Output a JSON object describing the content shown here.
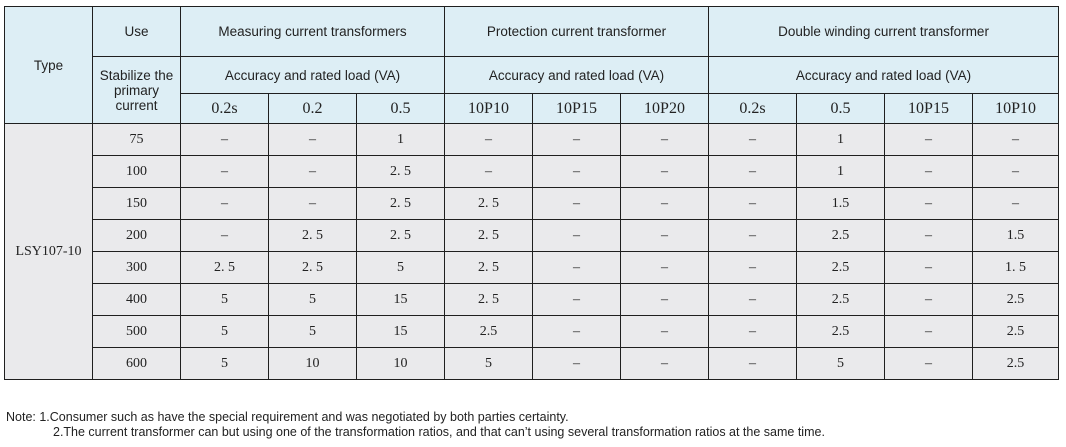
{
  "header": {
    "type": "Type",
    "use": "Use",
    "stabilize": "Stabilize the primary current",
    "groups": [
      "Measuring current transformers",
      "Protection current transformer",
      "Double winding current transformer"
    ],
    "accuracy": "Accuracy and rated load (VA)",
    "classes": [
      "0.2s",
      "0.2",
      "0.5",
      "10P10",
      "10P15",
      "10P20",
      "0.2s",
      "0.5",
      "10P15",
      "10P10"
    ]
  },
  "type_value": "LSY107-10",
  "rows": [
    {
      "current": "75",
      "values": [
        "–",
        "–",
        "1",
        "–",
        "–",
        "–",
        "–",
        "1",
        "–",
        "–"
      ]
    },
    {
      "current": "100",
      "values": [
        "–",
        "–",
        "2. 5",
        "–",
        "–",
        "–",
        "–",
        "1",
        "–",
        "–"
      ]
    },
    {
      "current": "150",
      "values": [
        "–",
        "–",
        "2. 5",
        "2. 5",
        "–",
        "–",
        "–",
        "1.5",
        "–",
        "–"
      ]
    },
    {
      "current": "200",
      "values": [
        "–",
        "2. 5",
        "2. 5",
        "2. 5",
        "–",
        "–",
        "–",
        "2.5",
        "–",
        "1.5"
      ]
    },
    {
      "current": "300",
      "values": [
        "2. 5",
        "2. 5",
        "5",
        "2. 5",
        "–",
        "–",
        "–",
        "2.5",
        "–",
        "1. 5"
      ]
    },
    {
      "current": "400",
      "values": [
        "5",
        "5",
        "15",
        "2. 5",
        "–",
        "–",
        "–",
        "2.5",
        "–",
        "2.5"
      ]
    },
    {
      "current": "500",
      "values": [
        "5",
        "5",
        "15",
        "2.5",
        "–",
        "–",
        "–",
        "2.5",
        "–",
        "2.5"
      ]
    },
    {
      "current": "600",
      "values": [
        "5",
        "10",
        "10",
        "5",
        "–",
        "–",
        "–",
        "5",
        "–",
        "2.5"
      ]
    }
  ],
  "notes": {
    "line1": "Note: 1.Consumer such as have the special requirement and was negotiated by both parties certainty.",
    "line2": "2.The current transformer can but using one of the transformation ratios, and that can’t using several transformation ratios at the same time."
  }
}
